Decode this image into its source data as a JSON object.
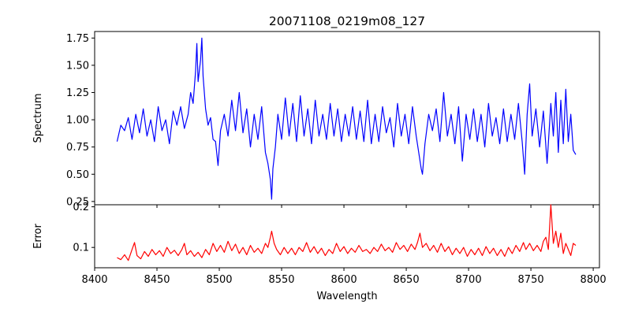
{
  "chart_data": [
    {
      "panel": "spectrum",
      "type": "line",
      "title": "20071108_0219m08_127",
      "ylabel": "Spectrum",
      "xlabel": "",
      "xlim": [
        8400,
        8805
      ],
      "ylim": [
        0.22,
        1.81
      ],
      "xticks": [
        8400,
        8450,
        8500,
        8550,
        8600,
        8650,
        8700,
        8750,
        8800
      ],
      "yticks": [
        0.25,
        0.5,
        0.75,
        1.0,
        1.25,
        1.5,
        1.75
      ],
      "ytick_labels": [
        "0.25",
        "0.50",
        "0.75",
        "1.00",
        "1.25",
        "1.50",
        "1.75"
      ],
      "grid": false,
      "series_color": "#0000ff",
      "x_range": [
        8418,
        8786
      ],
      "points": [
        [
          8418,
          0.8
        ],
        [
          8421,
          0.95
        ],
        [
          8424,
          0.9
        ],
        [
          8427,
          1.02
        ],
        [
          8430,
          0.82
        ],
        [
          8433,
          1.05
        ],
        [
          8436,
          0.88
        ],
        [
          8439,
          1.1
        ],
        [
          8442,
          0.85
        ],
        [
          8445,
          1.0
        ],
        [
          8448,
          0.8
        ],
        [
          8451,
          1.12
        ],
        [
          8454,
          0.9
        ],
        [
          8457,
          1.0
        ],
        [
          8460,
          0.78
        ],
        [
          8463,
          1.08
        ],
        [
          8466,
          0.95
        ],
        [
          8469,
          1.12
        ],
        [
          8472,
          0.92
        ],
        [
          8475,
          1.05
        ],
        [
          8477,
          1.25
        ],
        [
          8479,
          1.15
        ],
        [
          8481,
          1.45
        ],
        [
          8482,
          1.7
        ],
        [
          8483,
          1.35
        ],
        [
          8485,
          1.55
        ],
        [
          8486,
          1.75
        ],
        [
          8487,
          1.4
        ],
        [
          8489,
          1.1
        ],
        [
          8491,
          0.95
        ],
        [
          8493,
          1.02
        ],
        [
          8495,
          0.82
        ],
        [
          8497,
          0.8
        ],
        [
          8499,
          0.58
        ],
        [
          8501,
          0.9
        ],
        [
          8504,
          1.05
        ],
        [
          8507,
          0.85
        ],
        [
          8510,
          1.18
        ],
        [
          8513,
          0.9
        ],
        [
          8516,
          1.25
        ],
        [
          8519,
          0.88
        ],
        [
          8522,
          1.1
        ],
        [
          8525,
          0.75
        ],
        [
          8528,
          1.05
        ],
        [
          8531,
          0.82
        ],
        [
          8534,
          1.12
        ],
        [
          8537,
          0.7
        ],
        [
          8539,
          0.6
        ],
        [
          8541,
          0.45
        ],
        [
          8542,
          0.27
        ],
        [
          8543,
          0.55
        ],
        [
          8545,
          0.75
        ],
        [
          8547,
          1.05
        ],
        [
          8550,
          0.82
        ],
        [
          8553,
          1.2
        ],
        [
          8556,
          0.85
        ],
        [
          8559,
          1.15
        ],
        [
          8562,
          0.8
        ],
        [
          8565,
          1.22
        ],
        [
          8568,
          0.85
        ],
        [
          8571,
          1.1
        ],
        [
          8574,
          0.78
        ],
        [
          8577,
          1.18
        ],
        [
          8580,
          0.85
        ],
        [
          8583,
          1.05
        ],
        [
          8586,
          0.82
        ],
        [
          8589,
          1.15
        ],
        [
          8592,
          0.85
        ],
        [
          8595,
          1.1
        ],
        [
          8598,
          0.8
        ],
        [
          8601,
          1.05
        ],
        [
          8604,
          0.85
        ],
        [
          8607,
          1.12
        ],
        [
          8610,
          0.82
        ],
        [
          8613,
          1.08
        ],
        [
          8616,
          0.8
        ],
        [
          8619,
          1.18
        ],
        [
          8622,
          0.78
        ],
        [
          8625,
          1.05
        ],
        [
          8628,
          0.8
        ],
        [
          8631,
          1.12
        ],
        [
          8634,
          0.88
        ],
        [
          8637,
          1.02
        ],
        [
          8640,
          0.75
        ],
        [
          8643,
          1.15
        ],
        [
          8646,
          0.85
        ],
        [
          8649,
          1.05
        ],
        [
          8652,
          0.78
        ],
        [
          8655,
          1.12
        ],
        [
          8658,
          0.85
        ],
        [
          8660,
          0.7
        ],
        [
          8662,
          0.55
        ],
        [
          8663,
          0.5
        ],
        [
          8665,
          0.78
        ],
        [
          8668,
          1.05
        ],
        [
          8671,
          0.9
        ],
        [
          8674,
          1.1
        ],
        [
          8677,
          0.8
        ],
        [
          8680,
          1.25
        ],
        [
          8683,
          0.85
        ],
        [
          8686,
          1.05
        ],
        [
          8689,
          0.78
        ],
        [
          8692,
          1.12
        ],
        [
          8695,
          0.62
        ],
        [
          8698,
          1.05
        ],
        [
          8701,
          0.82
        ],
        [
          8704,
          1.1
        ],
        [
          8707,
          0.8
        ],
        [
          8710,
          1.05
        ],
        [
          8713,
          0.75
        ],
        [
          8716,
          1.15
        ],
        [
          8719,
          0.85
        ],
        [
          8722,
          1.02
        ],
        [
          8725,
          0.78
        ],
        [
          8728,
          1.1
        ],
        [
          8731,
          0.8
        ],
        [
          8734,
          1.05
        ],
        [
          8737,
          0.82
        ],
        [
          8740,
          1.15
        ],
        [
          8743,
          0.8
        ],
        [
          8745,
          0.5
        ],
        [
          8747,
          1.05
        ],
        [
          8749,
          1.33
        ],
        [
          8751,
          0.85
        ],
        [
          8754,
          1.1
        ],
        [
          8757,
          0.75
        ],
        [
          8760,
          1.08
        ],
        [
          8763,
          0.6
        ],
        [
          8766,
          1.15
        ],
        [
          8768,
          0.85
        ],
        [
          8770,
          1.25
        ],
        [
          8772,
          0.7
        ],
        [
          8774,
          1.18
        ],
        [
          8776,
          0.78
        ],
        [
          8778,
          1.28
        ],
        [
          8780,
          0.8
        ],
        [
          8782,
          1.05
        ],
        [
          8784,
          0.72
        ],
        [
          8786,
          0.68
        ]
      ]
    },
    {
      "panel": "error",
      "type": "line",
      "title": "",
      "ylabel": "Error",
      "xlabel": "Wavelength",
      "xlim": [
        8400,
        8805
      ],
      "ylim": [
        0.05,
        0.205
      ],
      "xticks": [
        8400,
        8450,
        8500,
        8550,
        8600,
        8650,
        8700,
        8750,
        8800
      ],
      "xtick_labels": [
        "8400",
        "8450",
        "8500",
        "8550",
        "8600",
        "8650",
        "8700",
        "8750",
        "8800"
      ],
      "yticks": [
        0.1,
        0.2
      ],
      "ytick_labels": [
        "0.1",
        "0.2"
      ],
      "grid": false,
      "series_color": "#ff0000",
      "x_range": [
        8418,
        8786
      ],
      "points": [
        [
          8418,
          0.075
        ],
        [
          8421,
          0.07
        ],
        [
          8424,
          0.082
        ],
        [
          8427,
          0.068
        ],
        [
          8430,
          0.095
        ],
        [
          8432,
          0.112
        ],
        [
          8434,
          0.08
        ],
        [
          8437,
          0.072
        ],
        [
          8440,
          0.09
        ],
        [
          8443,
          0.078
        ],
        [
          8446,
          0.095
        ],
        [
          8449,
          0.082
        ],
        [
          8452,
          0.092
        ],
        [
          8455,
          0.078
        ],
        [
          8458,
          0.1
        ],
        [
          8461,
          0.085
        ],
        [
          8464,
          0.093
        ],
        [
          8467,
          0.08
        ],
        [
          8470,
          0.095
        ],
        [
          8472,
          0.11
        ],
        [
          8474,
          0.082
        ],
        [
          8477,
          0.092
        ],
        [
          8480,
          0.078
        ],
        [
          8483,
          0.088
        ],
        [
          8486,
          0.075
        ],
        [
          8489,
          0.095
        ],
        [
          8492,
          0.082
        ],
        [
          8495,
          0.11
        ],
        [
          8498,
          0.09
        ],
        [
          8501,
          0.105
        ],
        [
          8504,
          0.088
        ],
        [
          8507,
          0.115
        ],
        [
          8510,
          0.092
        ],
        [
          8513,
          0.108
        ],
        [
          8516,
          0.085
        ],
        [
          8519,
          0.1
        ],
        [
          8522,
          0.082
        ],
        [
          8525,
          0.105
        ],
        [
          8528,
          0.088
        ],
        [
          8531,
          0.098
        ],
        [
          8534,
          0.085
        ],
        [
          8537,
          0.11
        ],
        [
          8539,
          0.1
        ],
        [
          8541,
          0.125
        ],
        [
          8542,
          0.14
        ],
        [
          8544,
          0.11
        ],
        [
          8546,
          0.095
        ],
        [
          8549,
          0.082
        ],
        [
          8552,
          0.1
        ],
        [
          8555,
          0.085
        ],
        [
          8558,
          0.098
        ],
        [
          8561,
          0.082
        ],
        [
          8564,
          0.1
        ],
        [
          8567,
          0.09
        ],
        [
          8570,
          0.112
        ],
        [
          8573,
          0.088
        ],
        [
          8576,
          0.102
        ],
        [
          8579,
          0.085
        ],
        [
          8582,
          0.098
        ],
        [
          8585,
          0.08
        ],
        [
          8588,
          0.095
        ],
        [
          8591,
          0.085
        ],
        [
          8594,
          0.11
        ],
        [
          8597,
          0.09
        ],
        [
          8600,
          0.102
        ],
        [
          8603,
          0.085
        ],
        [
          8606,
          0.098
        ],
        [
          8609,
          0.088
        ],
        [
          8612,
          0.105
        ],
        [
          8615,
          0.09
        ],
        [
          8618,
          0.095
        ],
        [
          8621,
          0.085
        ],
        [
          8624,
          0.1
        ],
        [
          8627,
          0.09
        ],
        [
          8630,
          0.108
        ],
        [
          8633,
          0.092
        ],
        [
          8636,
          0.1
        ],
        [
          8639,
          0.088
        ],
        [
          8642,
          0.112
        ],
        [
          8645,
          0.095
        ],
        [
          8648,
          0.105
        ],
        [
          8651,
          0.09
        ],
        [
          8654,
          0.108
        ],
        [
          8657,
          0.095
        ],
        [
          8659,
          0.112
        ],
        [
          8661,
          0.135
        ],
        [
          8663,
          0.1
        ],
        [
          8666,
          0.11
        ],
        [
          8669,
          0.092
        ],
        [
          8672,
          0.105
        ],
        [
          8675,
          0.088
        ],
        [
          8678,
          0.11
        ],
        [
          8681,
          0.09
        ],
        [
          8684,
          0.102
        ],
        [
          8687,
          0.082
        ],
        [
          8690,
          0.098
        ],
        [
          8693,
          0.085
        ],
        [
          8696,
          0.1
        ],
        [
          8699,
          0.078
        ],
        [
          8702,
          0.095
        ],
        [
          8705,
          0.082
        ],
        [
          8708,
          0.098
        ],
        [
          8711,
          0.08
        ],
        [
          8714,
          0.102
        ],
        [
          8717,
          0.085
        ],
        [
          8720,
          0.098
        ],
        [
          8723,
          0.08
        ],
        [
          8726,
          0.095
        ],
        [
          8729,
          0.078
        ],
        [
          8732,
          0.1
        ],
        [
          8735,
          0.085
        ],
        [
          8738,
          0.105
        ],
        [
          8741,
          0.09
        ],
        [
          8744,
          0.112
        ],
        [
          8746,
          0.095
        ],
        [
          8749,
          0.11
        ],
        [
          8752,
          0.092
        ],
        [
          8755,
          0.105
        ],
        [
          8758,
          0.09
        ],
        [
          8760,
          0.115
        ],
        [
          8762,
          0.125
        ],
        [
          8764,
          0.095
        ],
        [
          8766,
          0.205
        ],
        [
          8768,
          0.11
        ],
        [
          8770,
          0.14
        ],
        [
          8772,
          0.1
        ],
        [
          8774,
          0.135
        ],
        [
          8776,
          0.085
        ],
        [
          8778,
          0.11
        ],
        [
          8780,
          0.095
        ],
        [
          8782,
          0.08
        ],
        [
          8784,
          0.11
        ],
        [
          8786,
          0.105
        ]
      ]
    }
  ]
}
